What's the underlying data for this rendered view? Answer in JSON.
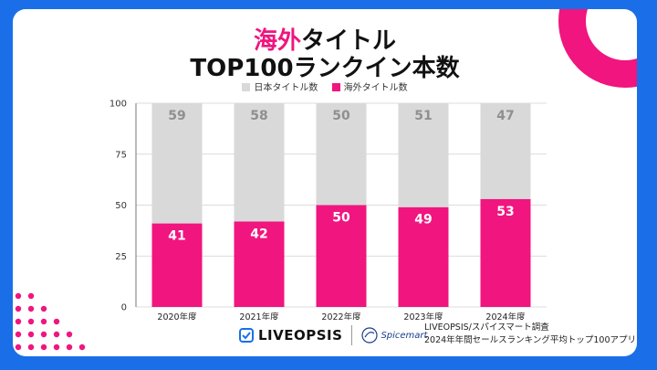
{
  "title": {
    "accent": "海外",
    "line1_rest": "タイトル",
    "line2": "TOP100ランクイン本数"
  },
  "legend": [
    {
      "label": "日本タイトル数",
      "color": "#d9d9d9"
    },
    {
      "label": "海外タイトル数",
      "color": "#f0157f"
    }
  ],
  "footer": {
    "brand1": "LIVEOPSIS",
    "brand2": "Spicemart",
    "source_line1": "LIVEOPSIS/スパイスマート調査",
    "source_line2": "2024年年間セールスランキング平均トップ100アプリ"
  },
  "chart_data": {
    "type": "bar",
    "stacked": true,
    "title": "海外タイトル TOP100ランクイン本数",
    "categories": [
      "2020年度",
      "2021年度",
      "2022年度",
      "2023年度",
      "2024年度"
    ],
    "series": [
      {
        "name": "海外タイトル数",
        "color": "#f0157f",
        "label_color": "#ffffff",
        "values": [
          41,
          42,
          50,
          49,
          53
        ]
      },
      {
        "name": "日本タイトル数",
        "color": "#d9d9d9",
        "label_color": "#8f8f8f",
        "values": [
          59,
          58,
          50,
          51,
          47
        ]
      }
    ],
    "yticks": [
      0,
      25,
      50,
      75,
      100
    ],
    "ylim": [
      0,
      100
    ],
    "grid": true,
    "legend": "top"
  }
}
